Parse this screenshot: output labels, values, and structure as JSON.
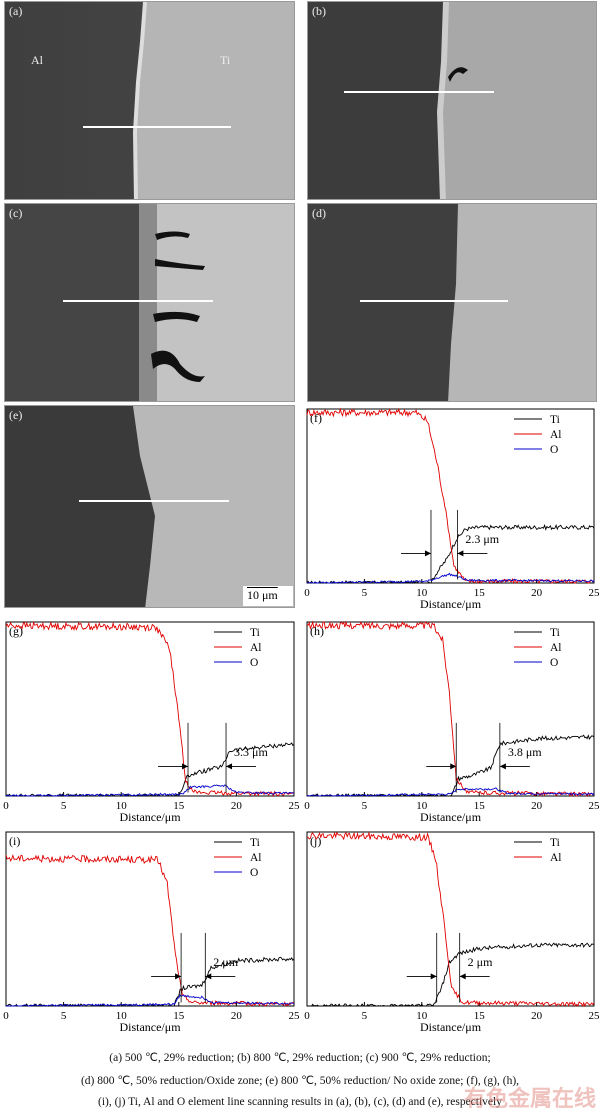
{
  "sem_panels": [
    {
      "id": "a",
      "label": "(a)",
      "texts": [
        "Al",
        "Ti"
      ]
    },
    {
      "id": "b",
      "label": "(b)"
    },
    {
      "id": "c",
      "label": "(c)"
    },
    {
      "id": "d",
      "label": "(d)"
    },
    {
      "id": "e",
      "label": "(e)",
      "scale_bar": "10 μm"
    }
  ],
  "chart_data": [
    {
      "id": "f",
      "label": "(f)",
      "type": "line",
      "xlabel": "Distance/μm",
      "xticks": [
        0,
        5,
        10,
        15,
        20,
        25
      ],
      "xlim": [
        0,
        25
      ],
      "legend": [
        "Ti",
        "Al",
        "O"
      ],
      "annotation": "2.3 μm",
      "series": [
        {
          "name": "Ti",
          "color": "#000000",
          "points": [
            [
              0,
              0
            ],
            [
              10.8,
              0
            ],
            [
              11.2,
              0.05
            ],
            [
              12.2,
              0.14
            ],
            [
              13,
              0.25
            ],
            [
              13.8,
              0.31
            ],
            [
              15,
              0.32
            ],
            [
              25,
              0.32
            ]
          ]
        },
        {
          "name": "Al",
          "color": "#e00000",
          "points": [
            [
              0,
              0.98
            ],
            [
              9.5,
              0.98
            ],
            [
              10.5,
              0.93
            ],
            [
              11.3,
              0.7
            ],
            [
              12,
              0.45
            ],
            [
              12.8,
              0.1
            ],
            [
              13.8,
              0.01
            ],
            [
              25,
              0.01
            ]
          ]
        },
        {
          "name": "O",
          "color": "#0000cc",
          "points": [
            [
              0,
              0
            ],
            [
              10.5,
              0.01
            ],
            [
              11.6,
              0.035
            ],
            [
              12.4,
              0.05
            ],
            [
              13,
              0.04
            ],
            [
              14,
              0.015
            ],
            [
              25,
              0.012
            ]
          ]
        }
      ],
      "vlines": [
        10.8,
        13.1
      ]
    },
    {
      "id": "g",
      "label": "(g)",
      "type": "line",
      "xlabel": "Distance/μm",
      "xticks": [
        0,
        5,
        10,
        15,
        20,
        25
      ],
      "xlim": [
        0,
        25
      ],
      "legend": [
        "Ti",
        "Al",
        "O"
      ],
      "annotation": "3.3 μm",
      "series": [
        {
          "name": "Ti",
          "color": "#000000",
          "points": [
            [
              0,
              0
            ],
            [
              15,
              0
            ],
            [
              15.8,
              0.12
            ],
            [
              17,
              0.14
            ],
            [
              18.8,
              0.17
            ],
            [
              19.4,
              0.26
            ],
            [
              22,
              0.28
            ],
            [
              25,
              0.3
            ]
          ]
        },
        {
          "name": "Al",
          "color": "#e00000",
          "points": [
            [
              0,
              0.98
            ],
            [
              13,
              0.97
            ],
            [
              14.2,
              0.85
            ],
            [
              15,
              0.45
            ],
            [
              15.6,
              0.08
            ],
            [
              16.5,
              0.02
            ],
            [
              25,
              0.01
            ]
          ]
        },
        {
          "name": "O",
          "color": "#0000cc",
          "points": [
            [
              0,
              0
            ],
            [
              15.3,
              0.01
            ],
            [
              16,
              0.05
            ],
            [
              19,
              0.06
            ],
            [
              20,
              0.02
            ],
            [
              25,
              0.015
            ]
          ]
        }
      ],
      "vlines": [
        15.8,
        19.1
      ]
    },
    {
      "id": "h",
      "label": "(h)",
      "type": "line",
      "xlabel": "Distance/μm",
      "xticks": [
        0,
        5,
        10,
        15,
        20,
        25
      ],
      "xlim": [
        0,
        25
      ],
      "legend": [
        "Ti",
        "Al",
        "O"
      ],
      "annotation": "3.8 μm",
      "series": [
        {
          "name": "Ti",
          "color": "#000000",
          "points": [
            [
              0,
              0
            ],
            [
              12.6,
              0
            ],
            [
              13.2,
              0.1
            ],
            [
              14.5,
              0.12
            ],
            [
              16,
              0.16
            ],
            [
              16.8,
              0.3
            ],
            [
              20,
              0.33
            ],
            [
              25,
              0.34
            ]
          ]
        },
        {
          "name": "Al",
          "color": "#e00000",
          "points": [
            [
              0,
              0.98
            ],
            [
              11,
              0.98
            ],
            [
              11.8,
              0.9
            ],
            [
              12.4,
              0.6
            ],
            [
              13,
              0.1
            ],
            [
              14,
              0.02
            ],
            [
              25,
              0.01
            ]
          ]
        },
        {
          "name": "O",
          "color": "#0000cc",
          "points": [
            [
              0,
              0
            ],
            [
              12.5,
              0.01
            ],
            [
              13.1,
              0.04
            ],
            [
              16.5,
              0.04
            ],
            [
              17.5,
              0.015
            ],
            [
              25,
              0.012
            ]
          ]
        }
      ],
      "vlines": [
        13,
        16.8
      ]
    },
    {
      "id": "i",
      "label": "(i)",
      "type": "line",
      "xlabel": "Distance/μm",
      "xticks": [
        0,
        5,
        10,
        15,
        20,
        25
      ],
      "xlim": [
        0,
        25
      ],
      "legend": [
        "Ti",
        "Al",
        "O"
      ],
      "annotation": "2 μm",
      "series": [
        {
          "name": "Ti",
          "color": "#000000",
          "points": [
            [
              0,
              0
            ],
            [
              14.6,
              0
            ],
            [
              15.2,
              0.1
            ],
            [
              17,
              0.12
            ],
            [
              17.8,
              0.22
            ],
            [
              20,
              0.26
            ],
            [
              24,
              0.27
            ]
          ]
        },
        {
          "name": "Al",
          "color": "#e00000",
          "points": [
            [
              0,
              0.85
            ],
            [
              13.2,
              0.84
            ],
            [
              14,
              0.7
            ],
            [
              14.7,
              0.3
            ],
            [
              15.3,
              0.06
            ],
            [
              16.2,
              0.02
            ],
            [
              24,
              0.01
            ]
          ]
        },
        {
          "name": "O",
          "color": "#0000cc",
          "points": [
            [
              0,
              0
            ],
            [
              14.6,
              0.01
            ],
            [
              15.1,
              0.06
            ],
            [
              17,
              0.05
            ],
            [
              18,
              0.02
            ],
            [
              24,
              0.015
            ]
          ]
        }
      ],
      "vlines": [
        15.2,
        17.3
      ]
    },
    {
      "id": "j",
      "label": "(j)",
      "type": "line",
      "xlabel": "Distance/μm",
      "xticks": [
        0,
        5,
        10,
        15,
        20,
        25
      ],
      "xlim": [
        0,
        25
      ],
      "legend": [
        "Ti",
        "Al"
      ],
      "annotation": "2 μm",
      "series": [
        {
          "name": "Ti",
          "color": "#000000",
          "points": [
            [
              0,
              0
            ],
            [
              11,
              0
            ],
            [
              11.7,
              0.1
            ],
            [
              12.4,
              0.25
            ],
            [
              13.2,
              0.3
            ],
            [
              15,
              0.33
            ],
            [
              20,
              0.35
            ],
            [
              25,
              0.35
            ]
          ]
        },
        {
          "name": "Al",
          "color": "#e00000",
          "points": [
            [
              0,
              0.98
            ],
            [
              10.5,
              0.97
            ],
            [
              11.2,
              0.85
            ],
            [
              11.9,
              0.5
            ],
            [
              12.6,
              0.1
            ],
            [
              13.6,
              0.02
            ],
            [
              25,
              0.01
            ]
          ]
        }
      ],
      "vlines": [
        11.3,
        13.3
      ]
    }
  ],
  "caption": {
    "line1": "(a) 500 ℃, 29% reduction; (b) 800 ℃, 29%  reduction; (c) 900 ℃, 29% reduction;",
    "line2": "(d) 800 ℃, 50% reduction/Oxide zone; (e) 800 ℃, 50% reduction/ No oxide zone; (f), (g), (h),",
    "line3": "(i), (j) Ti, Al and O element line scanning results in (a), (b), (c), (d) and (e), respectively"
  },
  "watermark": "有色金属在线"
}
